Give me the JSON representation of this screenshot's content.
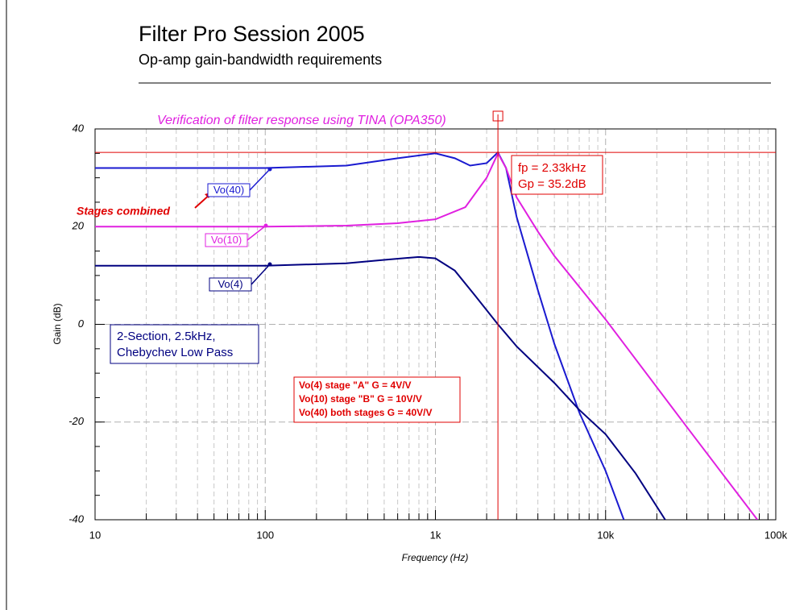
{
  "chart_data": {
    "type": "line",
    "title": "Filter Pro Session 2005",
    "subtitle": "Op-amp gain-bandwidth requirements",
    "plot_title": "Verification of filter response using TINA (OPA350)",
    "x_label": "Frequency (Hz)",
    "y_label": "Gain (dB)",
    "xscale": "log",
    "grid": true,
    "xlim": [
      10,
      100000
    ],
    "ylim": [
      -40,
      40
    ],
    "xticks": [
      10,
      100,
      {
        "value": 1000,
        "label": "1k"
      },
      {
        "value": 10000,
        "label": "10k"
      },
      {
        "value": 100000,
        "label": "100k"
      }
    ],
    "yticks": [
      40,
      20,
      0,
      -20,
      -40
    ],
    "series": [
      {
        "name": "Vo(40)",
        "color": "#1a1ad0",
        "x": [
          10,
          100,
          300,
          600,
          1000,
          1300,
          1600,
          2000,
          2330,
          2600,
          3000,
          4000,
          5000,
          7000,
          10000,
          12800
        ],
        "values": [
          32,
          32,
          32.5,
          34,
          35,
          34,
          32.5,
          33,
          35.2,
          32,
          22,
          7,
          -4,
          -18,
          -30,
          -40
        ]
      },
      {
        "name": "Vo(10)",
        "color": "#e020e0",
        "x": [
          10,
          100,
          300,
          600,
          1000,
          1500,
          2000,
          2330,
          2600,
          3000,
          4000,
          5000,
          10000,
          30000,
          78000
        ],
        "values": [
          20,
          20,
          20.2,
          20.7,
          21.5,
          24,
          30,
          35,
          32,
          26,
          19,
          14,
          1,
          -21,
          -40
        ]
      },
      {
        "name": "Vo(4)",
        "color": "#000080",
        "x": [
          10,
          100,
          300,
          500,
          800,
          1000,
          1300,
          1700,
          2330,
          3000,
          5000,
          7000,
          10000,
          15000,
          22400
        ],
        "values": [
          12,
          12,
          12.5,
          13.2,
          13.8,
          13.5,
          11,
          6,
          0,
          -4.5,
          -12,
          -17.5,
          -22.5,
          -30.5,
          -40
        ]
      }
    ],
    "cursor": {
      "x": 2330,
      "y": 35.2,
      "color": "#e00000",
      "lines": [
        "fp = 2.33kHz",
        "Gp = 35.2dB"
      ]
    },
    "callout": "Stages combined",
    "description": [
      "2-Section, 2.5kHz,",
      "Chebychev Low Pass"
    ],
    "notes": [
      "Vo(4) stage \"A\" G = 4V/V",
      "Vo(10) stage \"B\" G = 10V/V",
      "Vo(40) both stages G = 40V/V"
    ]
  }
}
